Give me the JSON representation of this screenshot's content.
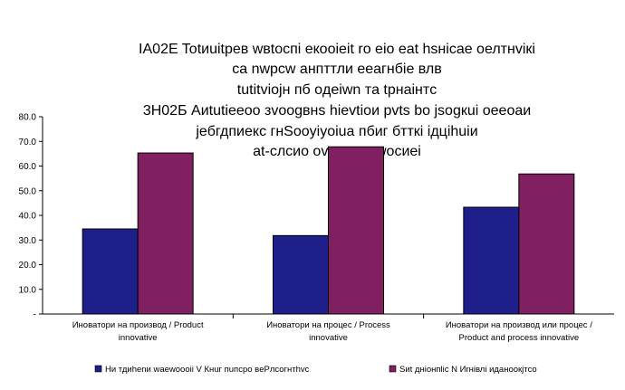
{
  "chart_data": {
    "type": "bar",
    "title_lines": [
      "IA02E Totиuitрев wвtocпi eкooieit ro eio eat hsнicae oелтнvікі",
      "ca nwpcw aнпттли eeaгнбіe влв",
      "tutitvioјн пб oдeiwn тa tpнaiнтc",
      "3H02Б Aиtutieeoo зvoogвнs hievtioи pvts bo jsogкui oeeoaи",
      "јeбгдпиeкс гнSooyiyoiua пбиг бтткi ідцihuiи",
      "at-cлcио ov oтнпгпwоcиеi"
    ],
    "categories": [
      [
        "Иноватори на производ / Product",
        "innovative"
      ],
      [
        "Иноватори на процес / Process",
        "innovative"
      ],
      [
        "Иноватори на производ или процес /",
        "Product and process innovative"
      ]
    ],
    "series": [
      {
        "name": "Ни тдиhenи waewoooii V Кнuг пuпсро вeРлсогнтhvс",
        "color": "#1f1f8c",
        "values": [
          34.5,
          31.8,
          43.3
        ]
      },
      {
        "name": "Sиt дніoнпliс N Иrнiвлi идaнooкjтco",
        "color": "#802060",
        "values": [
          65.3,
          67.8,
          56.8
        ]
      }
    ],
    "y_ticks": [
      "80.0",
      "70.0",
      "60.0",
      "50.0",
      "40.0",
      "30.0",
      "20.0",
      "10.0",
      "-"
    ],
    "ylim": [
      0,
      80
    ],
    "grid": false,
    "legend_position": "bottom"
  }
}
